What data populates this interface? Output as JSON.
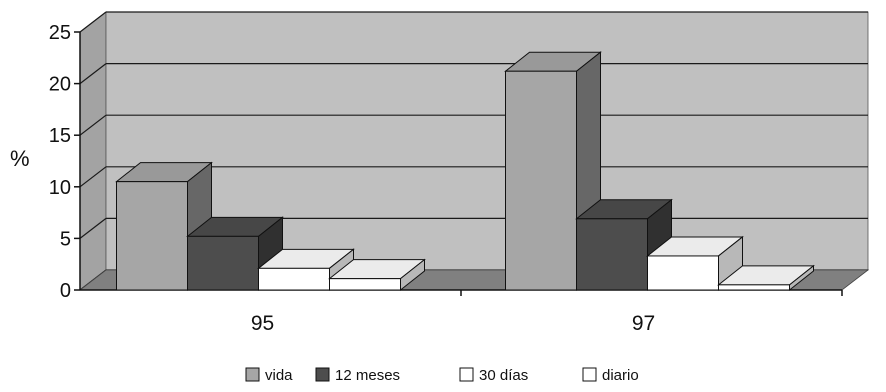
{
  "chart_data": {
    "type": "bar",
    "title": "",
    "xlabel": "",
    "ylabel": "%",
    "ylim": [
      0,
      25
    ],
    "yticks": [
      "0",
      "5",
      "10",
      "15",
      "20",
      "25"
    ],
    "categories": [
      "95",
      "97"
    ],
    "series": [
      {
        "name": "vida",
        "values": [
          10.5,
          21.2
        ],
        "color": "#a6a6a6"
      },
      {
        "name": "12 meses",
        "values": [
          5.2,
          6.9
        ],
        "color": "#4d4d4d"
      },
      {
        "name": "30 días",
        "values": [
          2.1,
          3.3
        ],
        "color": "#ffffff"
      },
      {
        "name": "diario",
        "values": [
          1.1,
          0.5
        ],
        "color": "#ffffff"
      }
    ],
    "style": "3d-clustered-column",
    "grid": true,
    "legend_position": "bottom",
    "colors": {
      "wall": "#c0c0c0",
      "floor": "#808080",
      "gridline": "#1a1a1a"
    }
  }
}
